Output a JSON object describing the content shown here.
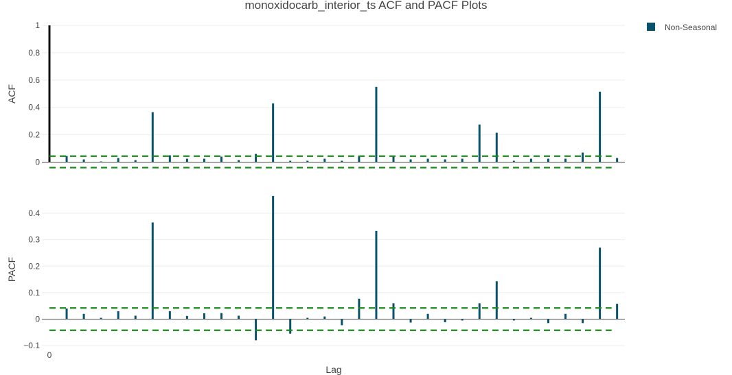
{
  "chart_data": {
    "type": "bar",
    "title": "monoxidocarb_interior_ts ACF and PACF Plots",
    "xlabel": "Lag",
    "x_tick_labels": [
      "0"
    ],
    "legend": {
      "position": "top-right",
      "entries": [
        {
          "name": "Non-Seasonal",
          "color": "#08536b"
        }
      ]
    },
    "colors": {
      "stem": "#08536b",
      "lag0": "#111111",
      "confidence": "#1a8a1a",
      "grid": "#eeeeee",
      "zeroline": "#444444"
    },
    "lags": [
      0,
      1,
      2,
      3,
      4,
      5,
      6,
      7,
      8,
      9,
      10,
      11,
      12,
      13,
      14,
      15,
      16,
      17,
      18,
      19,
      20,
      21,
      22,
      23,
      24,
      25,
      26,
      27,
      28,
      29,
      30,
      31,
      32,
      33
    ],
    "panels": [
      {
        "ylabel": "ACF",
        "ylim": [
          0,
          1
        ],
        "ticks": [
          0,
          0.2,
          0.4,
          0.6,
          0.8,
          1
        ],
        "tick_labels": [
          "0",
          "0.2",
          "0.4",
          "0.6",
          "0.8",
          "1"
        ],
        "confidence_band": [
          -0.04,
          0.044
        ],
        "values": [
          1.0,
          0.045,
          0.02,
          0.005,
          0.03,
          0.015,
          0.365,
          0.05,
          0.025,
          0.025,
          0.04,
          0.015,
          0.06,
          0.43,
          0.01,
          0.01,
          0.025,
          0.01,
          0.045,
          0.55,
          0.045,
          0.02,
          0.025,
          0.02,
          0.025,
          0.275,
          0.215,
          0.01,
          0.025,
          0.025,
          0.025,
          0.07,
          0.515,
          0.03
        ]
      },
      {
        "ylabel": "PACF",
        "ylim": [
          -0.12,
          0.46
        ],
        "ticks": [
          -0.1,
          0,
          0.1,
          0.2,
          0.3,
          0.4
        ],
        "tick_labels": [
          "−0.1",
          "0",
          "0.1",
          "0.2",
          "0.3",
          "0.4"
        ],
        "confidence_band": [
          -0.042,
          0.042
        ],
        "values": [
          null,
          0.04,
          0.02,
          0.005,
          0.03,
          0.013,
          0.365,
          0.03,
          0.012,
          0.022,
          0.023,
          0.013,
          -0.08,
          0.465,
          -0.055,
          0.005,
          0.01,
          -0.023,
          0.077,
          0.333,
          0.06,
          -0.013,
          0.02,
          -0.012,
          -0.005,
          0.06,
          0.143,
          -0.005,
          0.005,
          -0.015,
          0.02,
          -0.015,
          0.27,
          0.058
        ]
      }
    ]
  }
}
